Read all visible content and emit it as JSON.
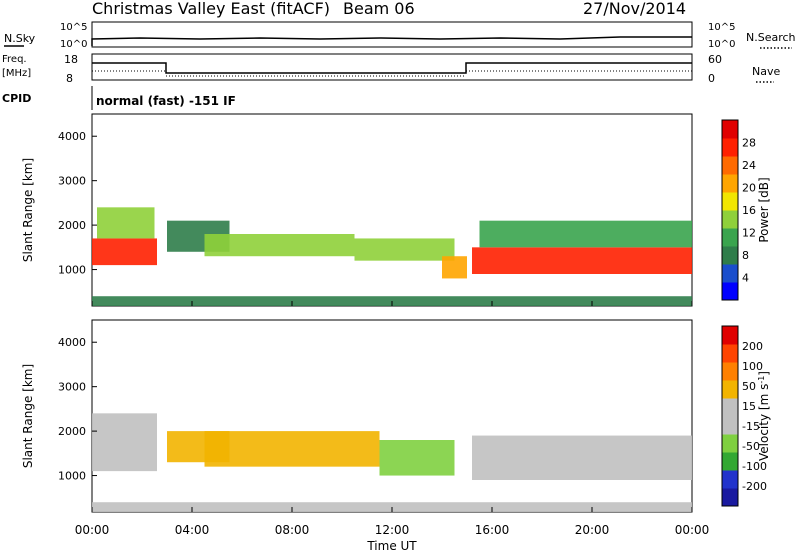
{
  "header": {
    "title": "Christmas Valley East (fitACF)",
    "beam": "Beam 06",
    "date": "27/Nov/2014"
  },
  "top_panels": {
    "nsky_label": "N.Sky",
    "nsearch_label": "N.Search",
    "noise_left_ticks": [
      "10^5",
      "10^0"
    ],
    "noise_right_ticks": [
      "10^5",
      "10^0"
    ],
    "freq_label_1": "Freq.",
    "freq_label_2": "[MHz]",
    "freq_ticks": [
      "18",
      "8"
    ],
    "nave_label": "Nave",
    "nave_ticks": [
      "60",
      "0"
    ],
    "cpid_label": "CPID",
    "cpid_text": "normal (fast) -151 IF"
  },
  "colors": {
    "power_scale": [
      "#0000ff",
      "#1a4ecc",
      "#2f7d4a",
      "#3aa44e",
      "#8fd03a",
      "#f2e600",
      "#ffa500",
      "#ff6a00",
      "#ff2000",
      "#e00000"
    ],
    "velocity_scale": [
      "#1a1aa0",
      "#2233cc",
      "#33a833",
      "#7fd040",
      "#c0c0c0",
      "#c0c0c0",
      "#f2b400",
      "#ff8000",
      "#ff4400",
      "#e00000"
    ]
  },
  "chart_data": [
    {
      "type": "heatmap",
      "name": "power",
      "xlabel": "Time UT",
      "ylabel": "Slant Range [km]",
      "xlim": [
        "00:00",
        "24:00"
      ],
      "ylim": [
        180,
        4500
      ],
      "yticks": [
        "1000",
        "2000",
        "3000",
        "4000"
      ],
      "xticks": [
        "00:00",
        "04:00",
        "08:00",
        "12:00",
        "16:00",
        "20:00",
        "00:00"
      ],
      "colorbar": {
        "label": "Power [dB]",
        "ticks": [
          "28",
          "24",
          "20",
          "16",
          "12",
          "8",
          "4"
        ],
        "range": [
          0,
          30
        ]
      },
      "bands": [
        {
          "t0": 0.0,
          "t1": 2.6,
          "r0": 1100,
          "r1": 1700,
          "value": 26
        },
        {
          "t0": 0.2,
          "t1": 2.5,
          "r0": 1700,
          "r1": 2400,
          "value": 12
        },
        {
          "t0": 3.0,
          "t1": 5.5,
          "r0": 1400,
          "r1": 2100,
          "value": 8
        },
        {
          "t0": 4.5,
          "t1": 10.5,
          "r0": 1300,
          "r1": 1800,
          "value": 14
        },
        {
          "t0": 10.5,
          "t1": 14.5,
          "r0": 1200,
          "r1": 1700,
          "value": 12
        },
        {
          "t0": 14.0,
          "t1": 15.0,
          "r0": 800,
          "r1": 1300,
          "value": 18
        },
        {
          "t0": 15.2,
          "t1": 24.0,
          "r0": 900,
          "r1": 1500,
          "value": 26
        },
        {
          "t0": 15.5,
          "t1": 24.0,
          "r0": 1500,
          "r1": 2100,
          "value": 10
        },
        {
          "t0": 0.0,
          "t1": 24.0,
          "r0": 180,
          "r1": 400,
          "value": 6
        }
      ]
    },
    {
      "type": "heatmap",
      "name": "velocity",
      "xlabel": "Time UT",
      "ylabel": "Slant Range [km]",
      "xlim": [
        "00:00",
        "24:00"
      ],
      "ylim": [
        180,
        4500
      ],
      "yticks": [
        "1000",
        "2000",
        "3000",
        "4000"
      ],
      "xticks": [
        "00:00",
        "04:00",
        "08:00",
        "12:00",
        "16:00",
        "20:00",
        "00:00"
      ],
      "colorbar": {
        "label": "Velocity [m s^-1]",
        "ticks": [
          "200",
          "100",
          "50",
          "15",
          "-15",
          "-50",
          "-100",
          "-200"
        ],
        "range": [
          -250,
          250
        ]
      },
      "bands": [
        {
          "t0": 0.0,
          "t1": 2.6,
          "r0": 1100,
          "r1": 2400,
          "value": 0
        },
        {
          "t0": 3.0,
          "t1": 5.5,
          "r0": 1300,
          "r1": 2000,
          "value": 60
        },
        {
          "t0": 4.5,
          "t1": 11.5,
          "r0": 1200,
          "r1": 2000,
          "value": 70
        },
        {
          "t0": 11.5,
          "t1": 14.5,
          "r0": 1000,
          "r1": 1800,
          "value": -60
        },
        {
          "t0": 15.2,
          "t1": 24.0,
          "r0": 900,
          "r1": 1900,
          "value": 0
        },
        {
          "t0": 0.0,
          "t1": 24.0,
          "r0": 180,
          "r1": 400,
          "value": -40
        }
      ]
    }
  ]
}
